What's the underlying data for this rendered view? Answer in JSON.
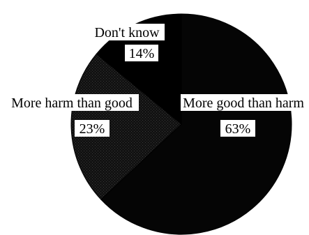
{
  "chart_data": {
    "type": "pie",
    "slices": [
      {
        "label": "More good than harm",
        "value": 63,
        "value_label": "63%"
      },
      {
        "label": "More harm than good",
        "value": 23,
        "value_label": "23%"
      },
      {
        "label": "Don't know",
        "value": 14,
        "value_label": "14%"
      }
    ],
    "unit": "%",
    "colors": {
      "More good than harm": "#050505",
      "More harm than good": "#141414",
      "Don't know": "#000000"
    },
    "label_style": "white boxes with black text"
  }
}
